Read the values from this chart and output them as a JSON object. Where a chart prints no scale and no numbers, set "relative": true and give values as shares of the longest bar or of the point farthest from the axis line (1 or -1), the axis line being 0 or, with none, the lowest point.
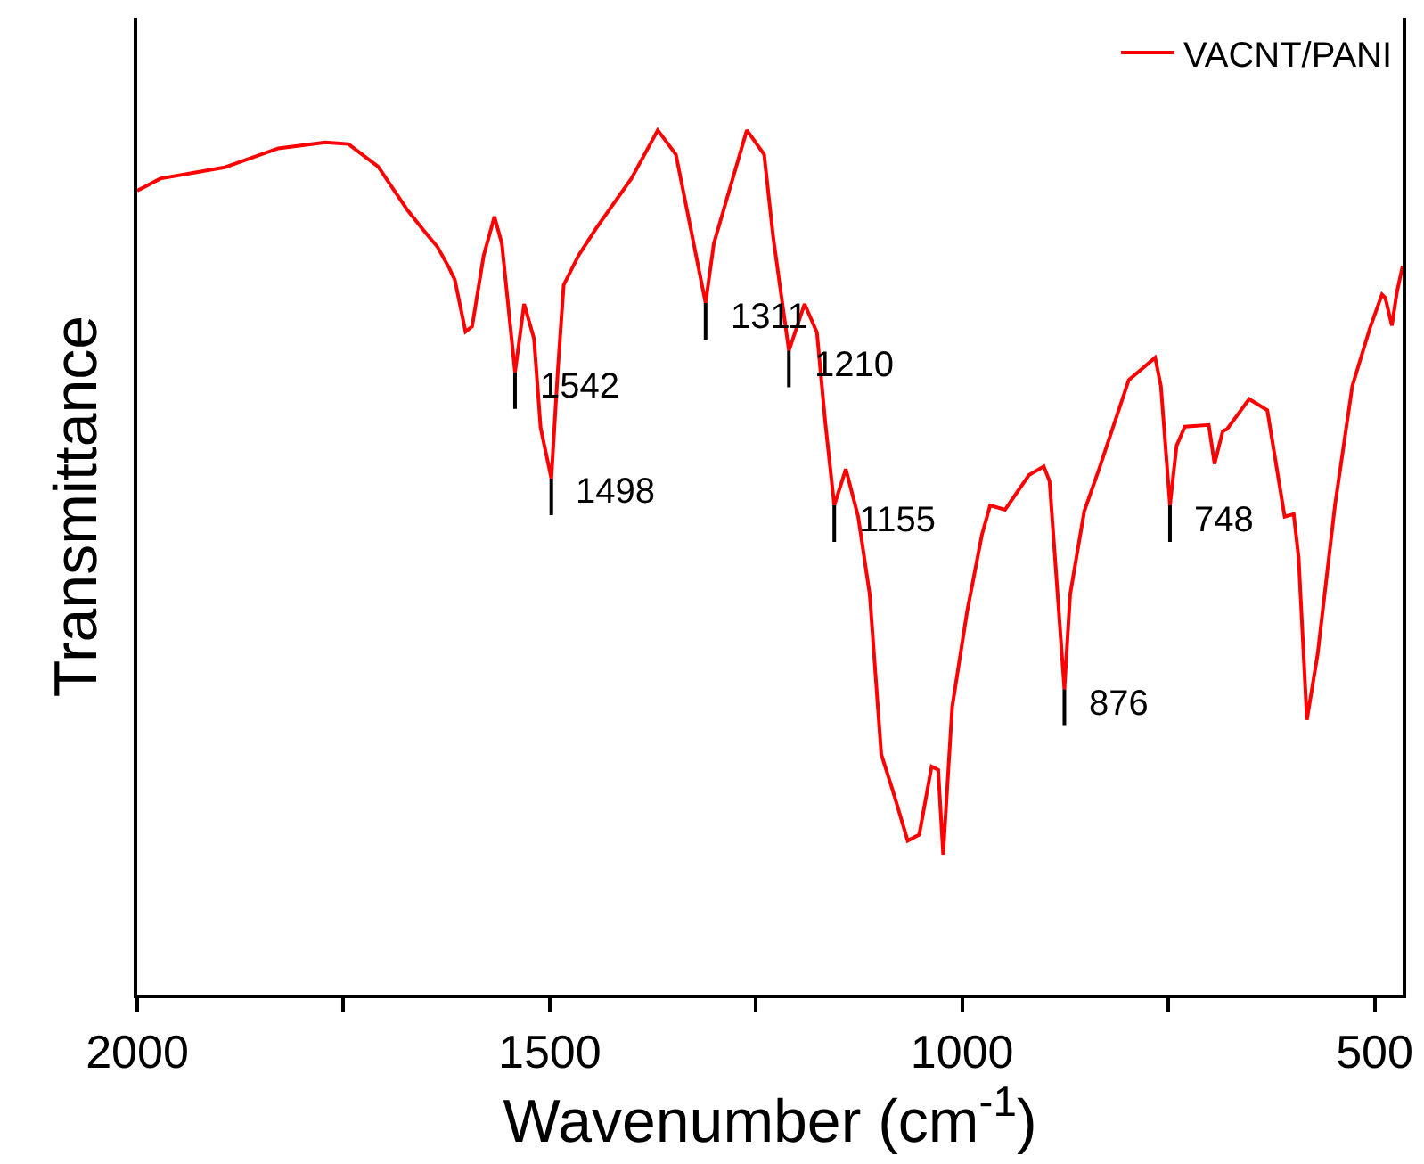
{
  "chart_data": {
    "type": "line",
    "relative": true,
    "xlabel": "Wavenumber (cm$^{-1}$)",
    "ylabel": "Transmittance",
    "x": [
      2000,
      1972,
      1894,
      1829,
      1772,
      1744,
      1708,
      1672,
      1651,
      1636,
      1622,
      1615,
      1602,
      1594,
      1580,
      1567,
      1558,
      1542,
      1531,
      1519,
      1511,
      1498,
      1490,
      1483,
      1465,
      1444,
      1401,
      1369,
      1347,
      1311,
      1301,
      1261,
      1240,
      1229,
      1210,
      1191,
      1176,
      1166,
      1155,
      1141,
      1126,
      1112,
      1098,
      1084,
      1066,
      1052,
      1037,
      1029,
      1023,
      1012,
      994,
      976,
      966,
      948,
      919,
      901,
      894,
      876,
      869,
      852,
      834,
      798,
      766,
      759,
      748,
      740,
      730,
      701,
      694,
      684,
      679,
      652,
      630,
      609,
      598,
      592,
      582,
      569,
      548,
      527,
      505,
      491,
      487,
      479,
      473,
      466
    ],
    "series": [
      {
        "name": "VACNT/PANI",
        "color": "#ff0000",
        "values": [
          0.93,
          0.944,
          0.957,
          0.979,
          0.986,
          0.984,
          0.958,
          0.907,
          0.882,
          0.865,
          0.841,
          0.827,
          0.767,
          0.773,
          0.855,
          0.9,
          0.869,
          0.72,
          0.799,
          0.759,
          0.656,
          0.597,
          0.724,
          0.821,
          0.855,
          0.886,
          0.944,
          1.0,
          0.972,
          0.8,
          0.869,
          1.0,
          0.972,
          0.876,
          0.745,
          0.799,
          0.766,
          0.663,
          0.566,
          0.608,
          0.553,
          0.463,
          0.278,
          0.236,
          0.178,
          0.185,
          0.264,
          0.26,
          0.162,
          0.333,
          0.443,
          0.532,
          0.566,
          0.561,
          0.601,
          0.611,
          0.594,
          0.353,
          0.463,
          0.559,
          0.608,
          0.711,
          0.737,
          0.704,
          0.566,
          0.635,
          0.657,
          0.659,
          0.614,
          0.652,
          0.654,
          0.689,
          0.676,
          0.553,
          0.556,
          0.505,
          0.318,
          0.394,
          0.566,
          0.704,
          0.773,
          0.81,
          0.806,
          0.774,
          0.812,
          0.843
        ]
      }
    ],
    "xlim": [
      2000,
      466
    ],
    "xticks": [
      2000,
      {
        "value": 1750,
        "label": null
      },
      1500,
      {
        "value": 1250,
        "label": null
      },
      1000,
      {
        "value": 750,
        "label": null
      },
      500
    ],
    "legend": "top right",
    "marker": "none",
    "line_style": "solid",
    "annotations": [
      {
        "text": "1542",
        "x": 1542,
        "y": 0.72
      },
      {
        "text": "1498",
        "x": 1498,
        "y": 0.597
      },
      {
        "text": "1311",
        "x": 1311,
        "y": 0.8
      },
      {
        "text": "1210",
        "x": 1210,
        "y": 0.745
      },
      {
        "text": "1155",
        "x": 1155,
        "y": 0.566
      },
      {
        "text": "876",
        "x": 876,
        "y": 0.353
      },
      {
        "text": "748",
        "x": 748,
        "y": 0.566
      }
    ]
  }
}
